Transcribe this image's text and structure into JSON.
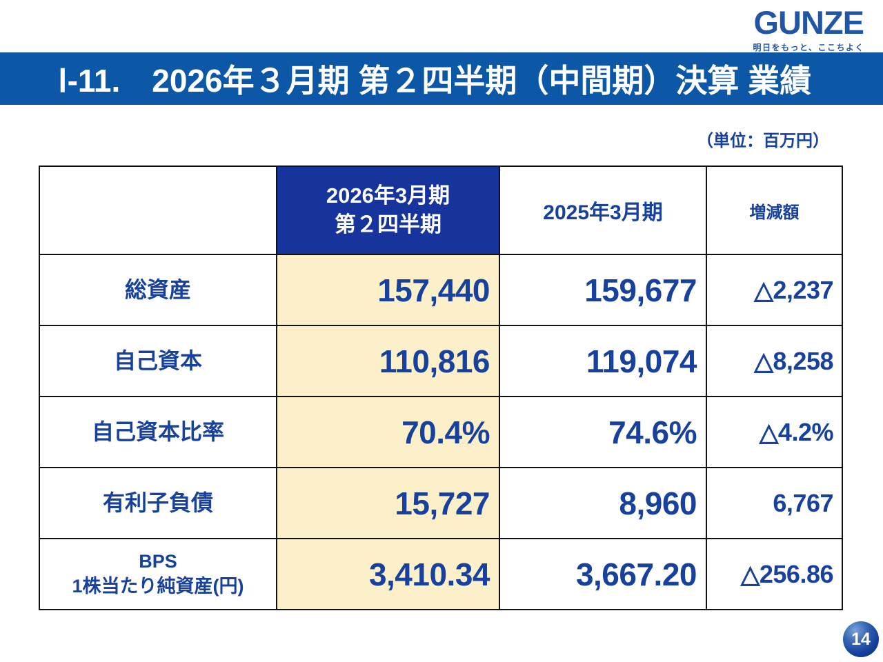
{
  "logo": {
    "brand": "GUNZE",
    "tagline": "明日をもっと、ここちよく"
  },
  "title_bar": {
    "title": "Ⅰ-11.　2026年３月期 第２四半期（中間期）決算 業績"
  },
  "unit_label": "（単位：百万円）",
  "table": {
    "header": {
      "current_line1": "2026年3月期",
      "current_line2": "第２四半期",
      "prior": "2025年3月期",
      "change": "増減額"
    },
    "rows": [
      {
        "label": "総資産",
        "label2": "",
        "current": "157,440",
        "prior": "159,677",
        "change": "△2,237"
      },
      {
        "label": "自己資本",
        "label2": "",
        "current": "110,816",
        "prior": "119,074",
        "change": "△8,258"
      },
      {
        "label": "自己資本比率",
        "label2": "",
        "current": "70.4%",
        "prior": "74.6%",
        "change": "△4.2%"
      },
      {
        "label": "有利子負債",
        "label2": "",
        "current": "15,727",
        "prior": "8,960",
        "change": "6,767"
      },
      {
        "label": "BPS",
        "label2": "1株当たり純資産(円)",
        "current": "3,410.34",
        "prior": "3,667.20",
        "change": "△256.86"
      }
    ]
  },
  "page_number": "14",
  "colors": {
    "title_bar_blue": "#0d57a7",
    "header_cell_navy": "#16349c",
    "highlight_column_cream": "#fcf0cb",
    "text_blue": "#17419c",
    "logo_blue": "#2156a5",
    "page_badge_blue": "#16409c",
    "border_black": "#111111"
  }
}
